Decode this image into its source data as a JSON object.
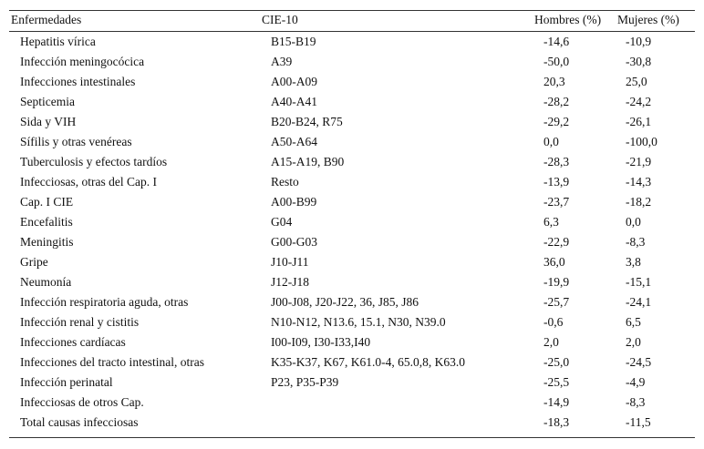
{
  "table": {
    "header": [
      "Enfermedades",
      "CIE-10",
      "Hombres (%)",
      "Mujeres (%)"
    ],
    "rows": [
      [
        "Hepatitis vírica",
        "B15-B19",
        "-14,6",
        "-10,9"
      ],
      [
        "Infección meningocócica",
        "A39",
        "-50,0",
        "-30,8"
      ],
      [
        "Infecciones intestinales",
        "A00-A09",
        "20,3",
        "25,0"
      ],
      [
        "Septicemia",
        "A40-A41",
        "-28,2",
        "-24,2"
      ],
      [
        "Sida y VIH",
        "B20-B24, R75",
        "-29,2",
        "-26,1"
      ],
      [
        "Sífilis y otras venéreas",
        "A50-A64",
        "0,0",
        "-100,0"
      ],
      [
        "Tuberculosis y efectos tardíos",
        "A15-A19, B90",
        "-28,3",
        "-21,9"
      ],
      [
        "Infecciosas, otras del Cap. I",
        "Resto",
        "-13,9",
        "-14,3"
      ],
      [
        "Cap. I CIE",
        "A00-B99",
        "-23,7",
        "-18,2"
      ],
      [
        "Encefalitis",
        "G04",
        "6,3",
        "0,0"
      ],
      [
        "Meningitis",
        "G00-G03",
        "-22,9",
        "-8,3"
      ],
      [
        "Gripe",
        "J10-J11",
        "36,0",
        "3,8"
      ],
      [
        "Neumonía",
        "J12-J18",
        "-19,9",
        "-15,1"
      ],
      [
        "Infección respiratoria aguda, otras",
        "J00-J08, J20-J22, 36, J85, J86",
        "-25,7",
        "-24,1"
      ],
      [
        "Infección renal y cistitis",
        "N10-N12, N13.6, 15.1, N30, N39.0",
        "-0,6",
        "6,5"
      ],
      [
        "Infecciones cardíacas",
        "I00-I09, I30-I33,I40",
        "2,0",
        "2,0"
      ],
      [
        "Infecciones del tracto intestinal, otras",
        "K35-K37, K67, K61.0-4, 65.0,8, K63.0",
        "-25,0",
        "-24,5"
      ],
      [
        "Infección perinatal",
        "P23, P35-P39",
        "-25,5",
        "-4,9"
      ],
      [
        "Infecciosas de otros Cap.",
        null,
        "-14,9",
        "-8,3"
      ],
      [
        "Total causas infecciosas",
        null,
        "-18,3",
        "-11,5"
      ]
    ]
  }
}
